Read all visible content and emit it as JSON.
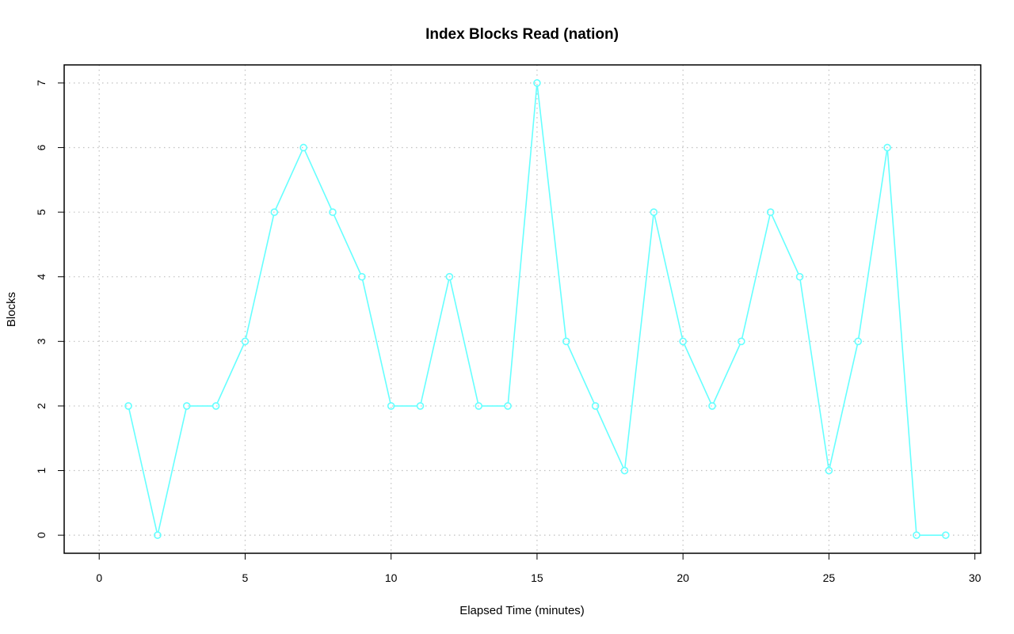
{
  "chart_data": {
    "type": "line",
    "title": "Index Blocks Read (nation)",
    "xlabel": "Elapsed Time (minutes)",
    "ylabel": "Blocks",
    "xlim": [
      -1.2,
      30.2
    ],
    "ylim": [
      -0.28,
      7.28
    ],
    "x_ticks": [
      0,
      5,
      10,
      15,
      20,
      25,
      30
    ],
    "y_ticks": [
      0,
      1,
      2,
      3,
      4,
      5,
      6,
      7
    ],
    "grid": true,
    "series": [
      {
        "color": "#66ffff",
        "marker": "circle",
        "x": [
          1,
          2,
          3,
          4,
          5,
          6,
          7,
          8,
          9,
          10,
          11,
          12,
          13,
          14,
          15,
          16,
          17,
          18,
          19,
          20,
          21,
          22,
          23,
          24,
          25,
          26,
          27,
          28,
          29
        ],
        "y": [
          2,
          0,
          2,
          2,
          3,
          5,
          6,
          5,
          4,
          2,
          2,
          4,
          2,
          2,
          7,
          3,
          2,
          1,
          5,
          3,
          2,
          3,
          5,
          4,
          1,
          3,
          6,
          0,
          0
        ]
      }
    ]
  }
}
